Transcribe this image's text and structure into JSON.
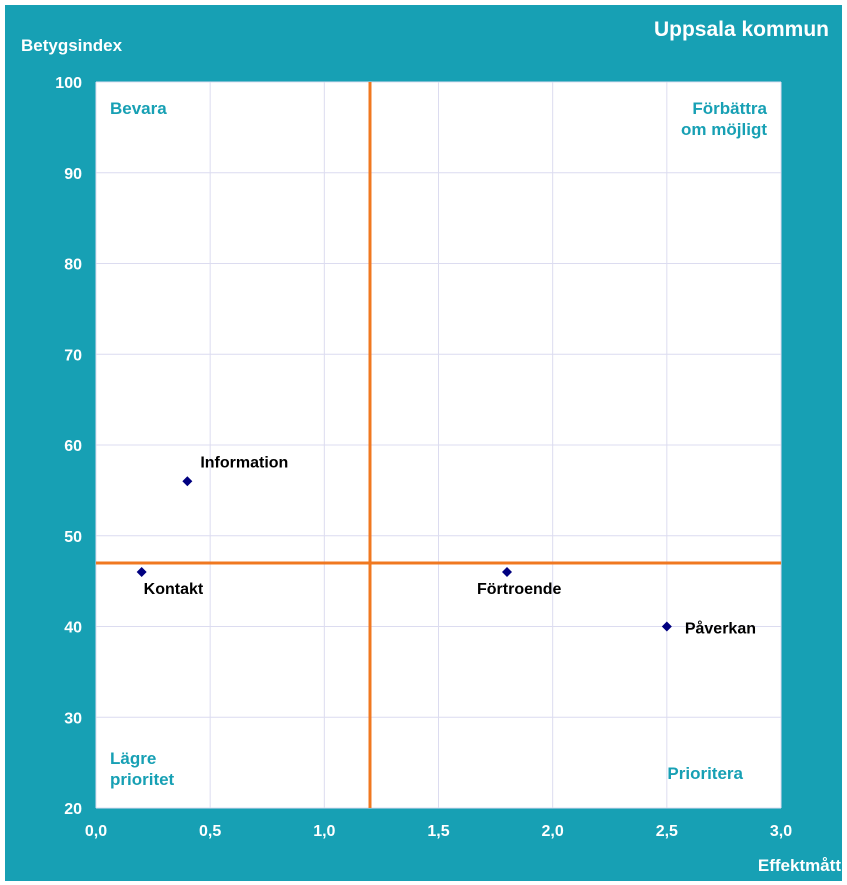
{
  "title": "Uppsala kommun",
  "colors": {
    "frame": "#17a0b4",
    "plot_bg": "#ffffff",
    "grid": "#dcdcf0",
    "divider": "#f07820",
    "marker": "#000080",
    "quadrant_text": "#17a0b4",
    "axis_text": "#ffffff",
    "label_text": "#000000"
  },
  "quadrant_labels": {
    "top_left": [
      "Bevara"
    ],
    "top_right": [
      "Förbättra",
      "om möjligt"
    ],
    "bottom_left": [
      "Lägre",
      "prioritet"
    ],
    "bottom_right": [
      "Prioritera"
    ]
  },
  "chart_data": {
    "type": "scatter",
    "title": "Uppsala kommun",
    "xlabel": "Effektmått",
    "ylabel": "Betygsindex",
    "xlim": [
      0,
      3
    ],
    "ylim": [
      20,
      100
    ],
    "x_ticks": [
      0,
      0.5,
      1,
      1.5,
      2,
      2.5,
      3
    ],
    "x_tick_labels": [
      "0,0",
      "0,5",
      "1,0",
      "1,5",
      "2,0",
      "2,5",
      "3,0"
    ],
    "y_ticks": [
      20,
      30,
      40,
      50,
      60,
      70,
      80,
      90,
      100
    ],
    "y_tick_labels": [
      "20",
      "30",
      "40",
      "50",
      "60",
      "70",
      "80",
      "90",
      "100"
    ],
    "grid": true,
    "divider_x": 1.2,
    "divider_y": 47,
    "points": [
      {
        "label": "Information",
        "x": 0.4,
        "y": 56
      },
      {
        "label": "Kontakt",
        "x": 0.2,
        "y": 46
      },
      {
        "label": "Förtroende",
        "x": 1.8,
        "y": 46
      },
      {
        "label": "Påverkan",
        "x": 2.5,
        "y": 40
      }
    ]
  }
}
